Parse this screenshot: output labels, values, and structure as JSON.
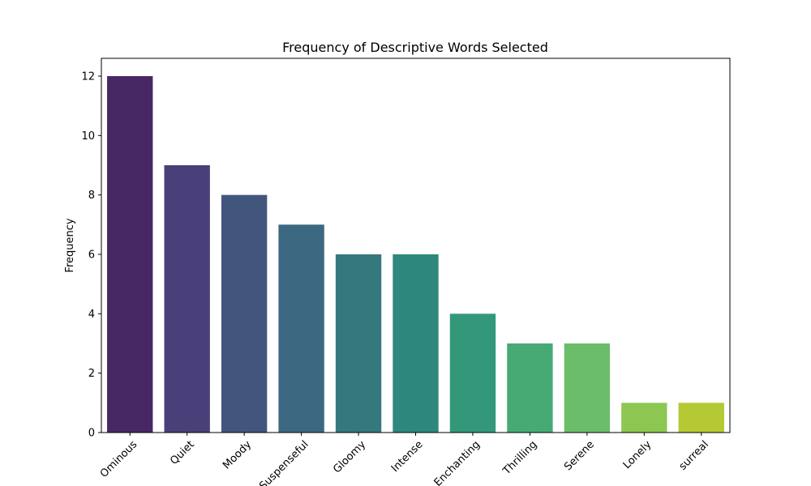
{
  "chart_data": {
    "type": "bar",
    "title": "Frequency of Descriptive Words Selected",
    "xlabel": "",
    "ylabel": "Frequency",
    "categories": [
      "Ominous",
      "Quiet",
      "Moody",
      "Suspenseful",
      "Gloomy",
      "Intense",
      "Enchanting",
      "Thrilling",
      "Serene",
      "Lonely",
      "surreal"
    ],
    "values": [
      12,
      9,
      8,
      7,
      6,
      6,
      4,
      3,
      3,
      1,
      1
    ],
    "colors": [
      "#472865",
      "#494079",
      "#42567d",
      "#3c6882",
      "#35787e",
      "#2e877d",
      "#329879",
      "#47aa74",
      "#6bbd69",
      "#8dc752",
      "#b5c934"
    ],
    "ylim": [
      0,
      12.6
    ],
    "yticks": [
      0,
      2,
      4,
      6,
      8,
      10,
      12
    ],
    "grid": false,
    "legend": "none"
  }
}
